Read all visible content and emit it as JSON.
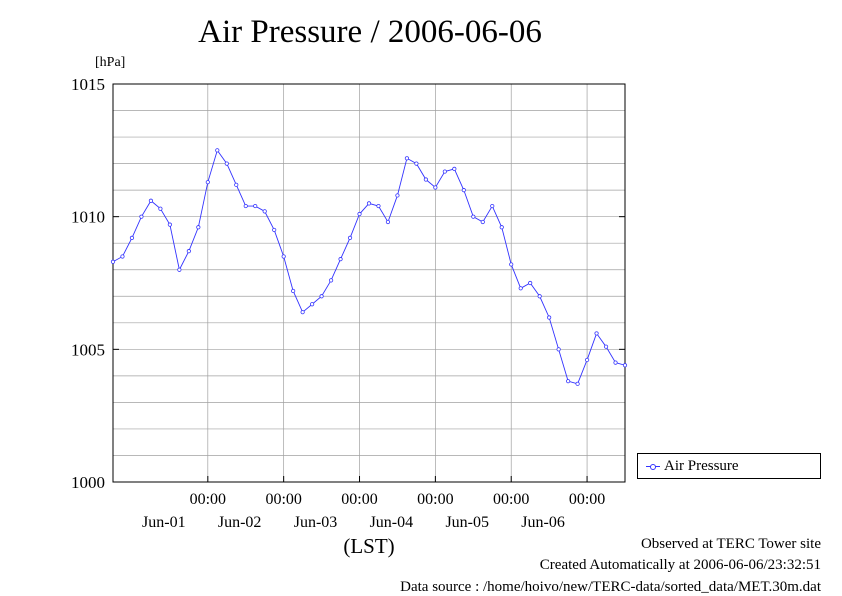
{
  "title": "Air Pressure / 2006-06-06",
  "y_unit": "[hPa]",
  "legend": {
    "label": "Air Pressure"
  },
  "footer": {
    "line1": "Observed at TERC Tower site",
    "line2": "Created Automatically at 2006-06-06/23:32:51",
    "line3": "Data source : /home/hoivo/new/TERC-data/sorted_data/MET.30m.dat"
  },
  "colors": {
    "series": "#3333ff",
    "grid": "#a0a0a0",
    "axis": "#000000"
  },
  "chart_data": {
    "type": "line",
    "title": "Air Pressure / 2006-06-06",
    "xlabel": "(LST)",
    "ylabel": "[hPa]",
    "ylim": [
      1000,
      1015
    ],
    "xlim": [
      "2006-05-31 06:00",
      "2006-06-07 00:00"
    ],
    "y_ticks": [
      1000,
      1005,
      1010,
      1015
    ],
    "x_ticks": [
      {
        "at": "2006-06-01 12:00",
        "time": "00:00",
        "date": "Jun-01"
      },
      {
        "at": "2006-06-02 12:00",
        "time": "00:00",
        "date": "Jun-02"
      },
      {
        "at": "2006-06-03 12:00",
        "time": "00:00",
        "date": "Jun-03"
      },
      {
        "at": "2006-06-04 12:00",
        "time": "00:00",
        "date": "Jun-04"
      },
      {
        "at": "2006-06-05 12:00",
        "time": "00:00",
        "date": "Jun-05"
      },
      {
        "at": "2006-06-06 12:00",
        "time": "00:00",
        "date": "Jun-06"
      }
    ],
    "grid": true,
    "legend_position": "right",
    "series": [
      {
        "name": "Air Pressure",
        "color": "#3333ff",
        "marker": "open-circle",
        "points": [
          [
            "2006-05-31 06:00",
            1008.3
          ],
          [
            "2006-05-31 09:00",
            1008.5
          ],
          [
            "2006-05-31 12:00",
            1009.2
          ],
          [
            "2006-05-31 15:00",
            1010.0
          ],
          [
            "2006-05-31 18:00",
            1010.6
          ],
          [
            "2006-05-31 21:00",
            1010.3
          ],
          [
            "2006-06-01 00:00",
            1009.7
          ],
          [
            "2006-06-01 03:00",
            1008.0
          ],
          [
            "2006-06-01 06:00",
            1008.7
          ],
          [
            "2006-06-01 09:00",
            1009.6
          ],
          [
            "2006-06-01 12:00",
            1011.3
          ],
          [
            "2006-06-01 15:00",
            1012.5
          ],
          [
            "2006-06-01 18:00",
            1012.0
          ],
          [
            "2006-06-01 21:00",
            1011.2
          ],
          [
            "2006-06-02 00:00",
            1010.4
          ],
          [
            "2006-06-02 03:00",
            1010.4
          ],
          [
            "2006-06-02 06:00",
            1010.2
          ],
          [
            "2006-06-02 09:00",
            1009.5
          ],
          [
            "2006-06-02 12:00",
            1008.5
          ],
          [
            "2006-06-02 15:00",
            1007.2
          ],
          [
            "2006-06-02 18:00",
            1006.4
          ],
          [
            "2006-06-02 21:00",
            1006.7
          ],
          [
            "2006-06-03 00:00",
            1007.0
          ],
          [
            "2006-06-03 03:00",
            1007.6
          ],
          [
            "2006-06-03 06:00",
            1008.4
          ],
          [
            "2006-06-03 09:00",
            1009.2
          ],
          [
            "2006-06-03 12:00",
            1010.1
          ],
          [
            "2006-06-03 15:00",
            1010.5
          ],
          [
            "2006-06-03 18:00",
            1010.4
          ],
          [
            "2006-06-03 21:00",
            1009.8
          ],
          [
            "2006-06-04 00:00",
            1010.8
          ],
          [
            "2006-06-04 03:00",
            1012.2
          ],
          [
            "2006-06-04 06:00",
            1012.0
          ],
          [
            "2006-06-04 09:00",
            1011.4
          ],
          [
            "2006-06-04 12:00",
            1011.1
          ],
          [
            "2006-06-04 15:00",
            1011.7
          ],
          [
            "2006-06-04 18:00",
            1011.8
          ],
          [
            "2006-06-04 21:00",
            1011.0
          ],
          [
            "2006-06-05 00:00",
            1010.0
          ],
          [
            "2006-06-05 03:00",
            1009.8
          ],
          [
            "2006-06-05 06:00",
            1010.4
          ],
          [
            "2006-06-05 09:00",
            1009.6
          ],
          [
            "2006-06-05 12:00",
            1008.2
          ],
          [
            "2006-06-05 15:00",
            1007.3
          ],
          [
            "2006-06-05 18:00",
            1007.5
          ],
          [
            "2006-06-05 21:00",
            1007.0
          ],
          [
            "2006-06-06 00:00",
            1006.2
          ],
          [
            "2006-06-06 03:00",
            1005.0
          ],
          [
            "2006-06-06 06:00",
            1003.8
          ],
          [
            "2006-06-06 09:00",
            1003.7
          ],
          [
            "2006-06-06 12:00",
            1004.6
          ],
          [
            "2006-06-06 15:00",
            1005.6
          ],
          [
            "2006-06-06 18:00",
            1005.1
          ],
          [
            "2006-06-06 21:00",
            1004.5
          ]
        ],
        "extended_points": [
          [
            "2006-06-07 00:00",
            1004.4
          ]
        ]
      }
    ]
  }
}
